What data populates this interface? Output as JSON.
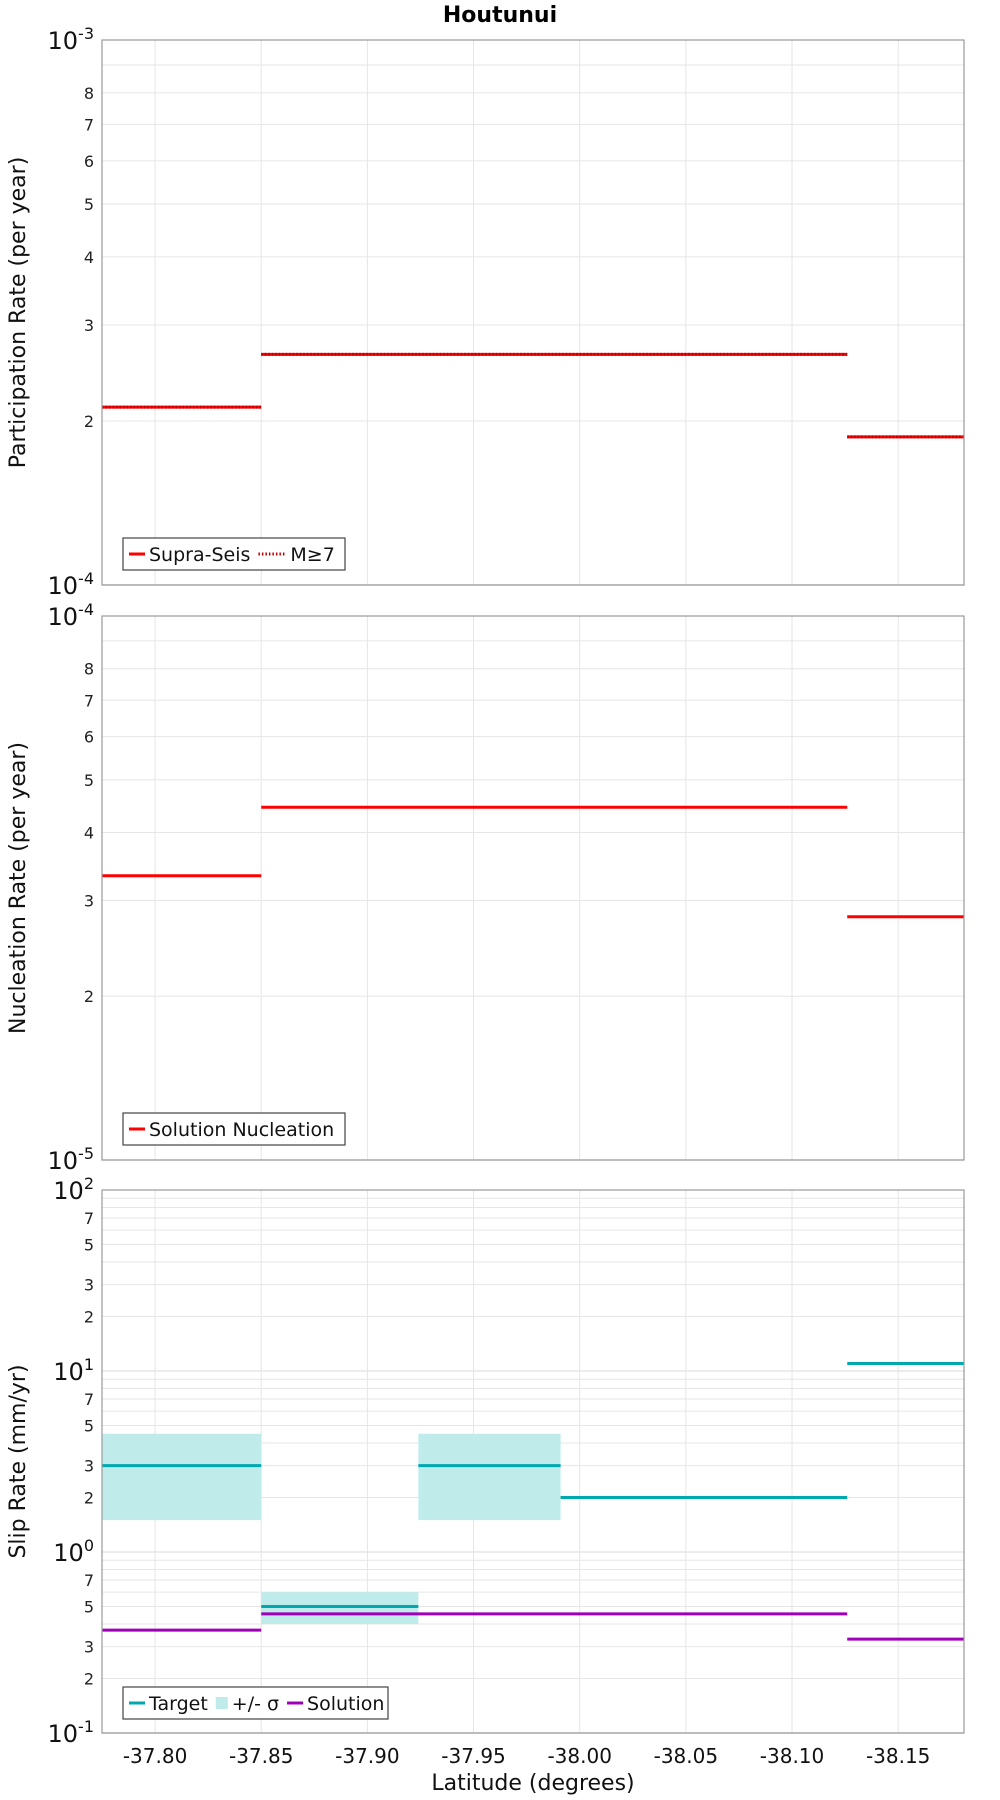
{
  "colors": {
    "supra": "#ff0000",
    "target": "#00a8b0",
    "sigma": "#bfeceb",
    "solution": "#a000b8",
    "grid": "#e6e6e6",
    "frame": "#999999"
  },
  "chart_data": [
    {
      "type": "line",
      "title": "Houtunui",
      "xlabel": "",
      "ylabel": "Participation Rate (per year)",
      "xlim": [
        -37.775,
        -38.181
      ],
      "ylim": [
        0.0001,
        0.001
      ],
      "yscale": "log",
      "grid": true,
      "legend_position": "bottom-left",
      "x_tick_labels_shown": false,
      "y_decade_labels": [
        {
          "base": "10",
          "exp": "-4"
        },
        {
          "base": "10",
          "exp": "-3"
        }
      ],
      "y_minor_labels": [
        "2",
        "3",
        "4",
        "5",
        "6",
        "7",
        "8"
      ],
      "series": [
        {
          "name": "Supra-Seis",
          "style": "solid",
          "segments": [
            {
              "x0": -37.775,
              "x1": -37.85,
              "y": 0.000212
            },
            {
              "x0": -37.85,
              "x1": -38.126,
              "y": 0.000265
            },
            {
              "x0": -38.126,
              "x1": -38.181,
              "y": 0.000187
            }
          ]
        },
        {
          "name": "M≥7",
          "style": "dotted",
          "segments": [
            {
              "x0": -37.775,
              "x1": -37.85,
              "y": 0.000212
            },
            {
              "x0": -37.85,
              "x1": -38.126,
              "y": 0.000265
            },
            {
              "x0": -38.126,
              "x1": -38.181,
              "y": 0.000187
            }
          ]
        }
      ]
    },
    {
      "type": "line",
      "title": "",
      "xlabel": "",
      "ylabel": "Nucleation Rate (per year)",
      "xlim": [
        -37.775,
        -38.181
      ],
      "ylim": [
        1e-05,
        0.0001
      ],
      "yscale": "log",
      "grid": true,
      "legend_position": "bottom-left",
      "x_tick_labels_shown": false,
      "y_decade_labels": [
        {
          "base": "10",
          "exp": "-5"
        },
        {
          "base": "10",
          "exp": "-4"
        }
      ],
      "y_minor_labels": [
        "2",
        "3",
        "4",
        "5",
        "6",
        "7",
        "8"
      ],
      "series": [
        {
          "name": "Solution Nucleation",
          "style": "solid",
          "segments": [
            {
              "x0": -37.775,
              "x1": -37.85,
              "y": 3.33e-05
            },
            {
              "x0": -37.85,
              "x1": -38.126,
              "y": 4.45e-05
            },
            {
              "x0": -38.126,
              "x1": -38.181,
              "y": 2.8e-05
            }
          ]
        }
      ]
    },
    {
      "type": "line",
      "title": "",
      "xlabel": "Latitude (degrees)",
      "ylabel": "Slip Rate (mm/yr)",
      "xlim": [
        -37.775,
        -38.181
      ],
      "ylim": [
        0.1,
        100
      ],
      "yscale": "log",
      "grid": true,
      "legend_position": "bottom-left",
      "x_ticks": [
        -37.8,
        -37.85,
        -37.9,
        -37.95,
        -38.0,
        -38.05,
        -38.1,
        -38.15
      ],
      "x_tick_labels": [
        "-37.80",
        "-37.85",
        "-37.90",
        "-37.95",
        "-38.00",
        "-38.05",
        "-38.10",
        "-38.15"
      ],
      "y_decade_labels": [
        {
          "base": "10",
          "exp": "-1"
        },
        {
          "base": "10",
          "exp": "0"
        },
        {
          "base": "10",
          "exp": "1"
        },
        {
          "base": "10",
          "exp": "2"
        }
      ],
      "y_minor_labels": [
        "2",
        "3",
        "5",
        "7"
      ],
      "series": [
        {
          "name": "Target",
          "style": "solid",
          "segments": [
            {
              "x0": -37.775,
              "x1": -37.85,
              "y": 3.0
            },
            {
              "x0": -37.85,
              "x1": -37.924,
              "y": 0.5
            },
            {
              "x0": -37.924,
              "x1": -37.991,
              "y": 3.0
            },
            {
              "x0": -37.991,
              "x1": -38.126,
              "y": 2.0
            },
            {
              "x0": -38.126,
              "x1": -38.181,
              "y": 11.0
            }
          ]
        },
        {
          "name": "+/- σ",
          "style": "band",
          "segments": [
            {
              "x0": -37.775,
              "x1": -37.85,
              "low": 1.5,
              "high": 4.5
            },
            {
              "x0": -37.85,
              "x1": -37.924,
              "low": 0.4,
              "high": 0.6
            },
            {
              "x0": -37.924,
              "x1": -37.991,
              "low": 1.5,
              "high": 4.5
            }
          ]
        },
        {
          "name": "Solution",
          "style": "solid",
          "segments": [
            {
              "x0": -37.775,
              "x1": -37.85,
              "y": 0.37
            },
            {
              "x0": -37.85,
              "x1": -38.126,
              "y": 0.455
            },
            {
              "x0": -38.126,
              "x1": -38.181,
              "y": 0.33
            }
          ]
        }
      ]
    }
  ]
}
